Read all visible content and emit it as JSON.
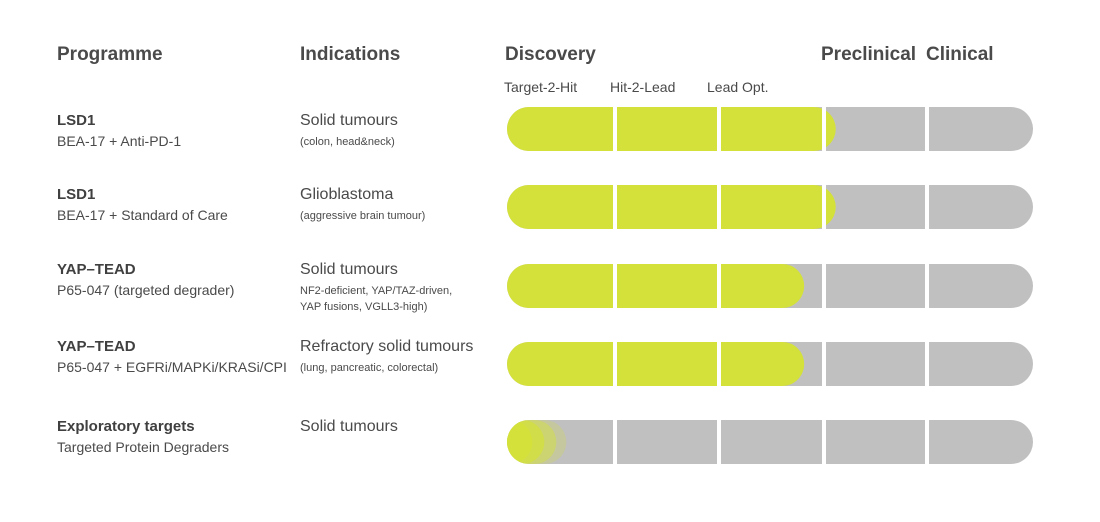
{
  "headers": {
    "programme": "Programme",
    "indications": "Indications",
    "discovery": "Discovery",
    "preclinical": "Preclinical",
    "clinical": "Clinical"
  },
  "stages": {
    "target_to_hit": "Target-2-Hit",
    "hit_to_lead": "Hit-2-Lead",
    "lead_opt": "Lead Opt."
  },
  "colors": {
    "progress": "#d4e13a",
    "track": "#c0c0c0",
    "divider": "#ffffff"
  },
  "rows": [
    {
      "programme": "LSD1",
      "description": "BEA-17 + Anti-PD-1",
      "indication": "Solid tumours",
      "indication_detail": "(colon, head&neck)",
      "progress": 0.625
    },
    {
      "programme": "LSD1",
      "description": "BEA-17 + Standard of Care",
      "indication": "Glioblastoma",
      "indication_detail": "(aggressive brain tumour)",
      "progress": 0.625
    },
    {
      "programme": "YAP–TEAD",
      "description": "P65-047 (targeted degrader)",
      "indication": "Solid tumours",
      "indication_detail": "NF2-deficient, YAP/TAZ-driven,\nYAP fusions, VGLL3-high)",
      "progress": 0.565
    },
    {
      "programme": "YAP–TEAD",
      "description": "P65-047 + EGFRi/MAPKi/KRASi/CPI",
      "indication": "Refractory solid tumours",
      "indication_detail": "(lung, pancreatic, colorectal)",
      "progress": 0.565
    },
    {
      "programme": "Exploratory targets",
      "description": "Targeted Protein Degraders",
      "indication": "Solid tumours",
      "indication_detail": "",
      "progress": 0.09,
      "fading": true
    }
  ]
}
